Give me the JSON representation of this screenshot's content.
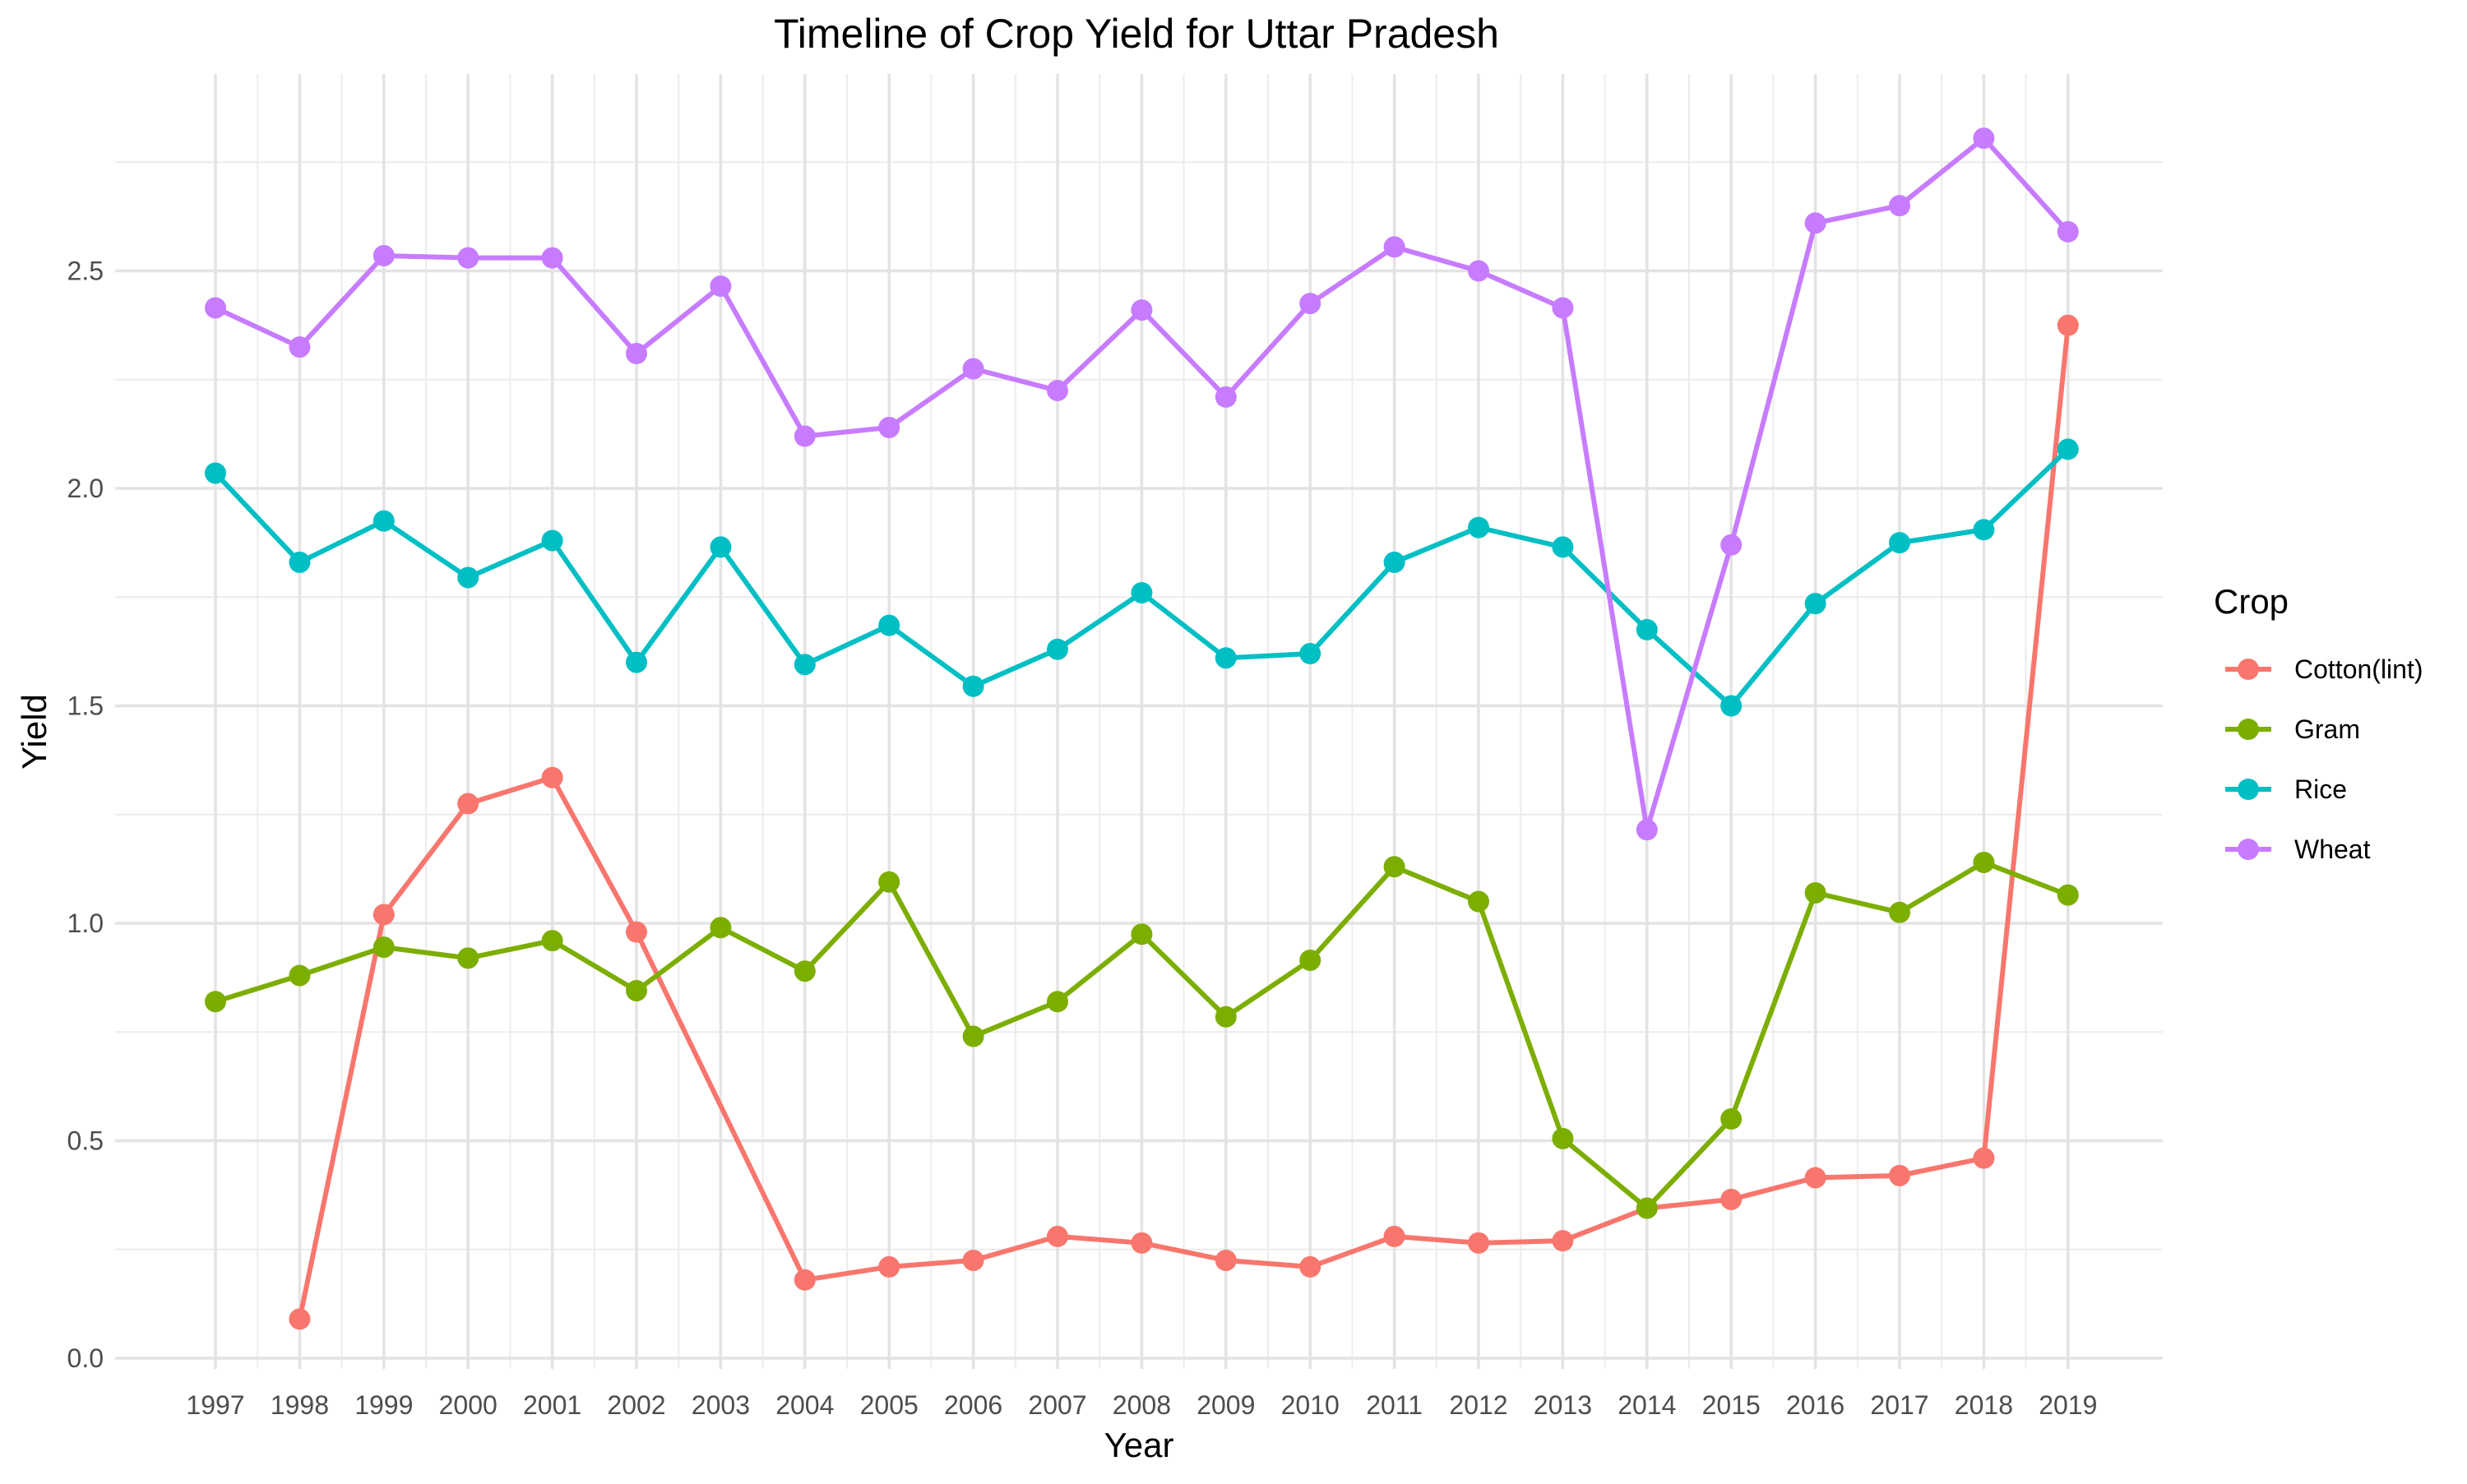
{
  "chart_data": {
    "type": "line",
    "title": "Timeline of Crop Yield for Uttar Pradesh",
    "xlabel": "Year",
    "ylabel": "Yield",
    "x": [
      "1997",
      "1998",
      "1999",
      "2000",
      "2001",
      "2002",
      "2003",
      "2004",
      "2005",
      "2006",
      "2007",
      "2008",
      "2009",
      "2010",
      "2011",
      "2012",
      "2013",
      "2014",
      "2015",
      "2016",
      "2017",
      "2018",
      "2019"
    ],
    "ylim": [
      0,
      2.85
    ],
    "yticks": [
      0.0,
      0.5,
      1.0,
      1.5,
      2.0,
      2.5
    ],
    "ytick_labels": [
      "0.0",
      "0.5",
      "1.0",
      "1.5",
      "2.0",
      "2.5"
    ],
    "grid": true,
    "legend": {
      "title": "Crop",
      "position": "right"
    },
    "series": [
      {
        "name": "Cotton(lint)",
        "color": "#F8766D",
        "values": [
          null,
          0.09,
          1.02,
          1.275,
          1.335,
          0.98,
          null,
          0.18,
          0.21,
          0.225,
          0.28,
          0.265,
          0.225,
          0.21,
          0.28,
          0.265,
          0.27,
          0.345,
          0.365,
          0.415,
          0.42,
          0.46,
          2.375
        ]
      },
      {
        "name": "Gram",
        "color": "#7CAE00",
        "values": [
          0.82,
          0.88,
          0.945,
          0.92,
          0.96,
          0.845,
          0.99,
          0.89,
          1.095,
          0.74,
          0.82,
          0.975,
          0.785,
          0.915,
          1.13,
          1.05,
          0.505,
          0.345,
          0.55,
          1.07,
          1.025,
          1.14,
          1.065
        ]
      },
      {
        "name": "Rice",
        "color": "#00BFC4",
        "values": [
          2.035,
          1.83,
          1.925,
          1.795,
          1.88,
          1.6,
          1.865,
          1.595,
          1.685,
          1.545,
          1.63,
          1.76,
          1.61,
          1.62,
          1.83,
          1.91,
          1.865,
          1.675,
          1.5,
          1.735,
          1.875,
          1.905,
          2.09
        ]
      },
      {
        "name": "Wheat",
        "color": "#C77CFF",
        "values": [
          2.415,
          2.325,
          2.535,
          2.53,
          2.53,
          2.31,
          2.465,
          2.12,
          2.14,
          2.275,
          2.225,
          2.41,
          2.21,
          2.425,
          2.555,
          2.5,
          2.415,
          1.215,
          1.87,
          2.61,
          2.65,
          2.805,
          2.59
        ]
      }
    ]
  }
}
